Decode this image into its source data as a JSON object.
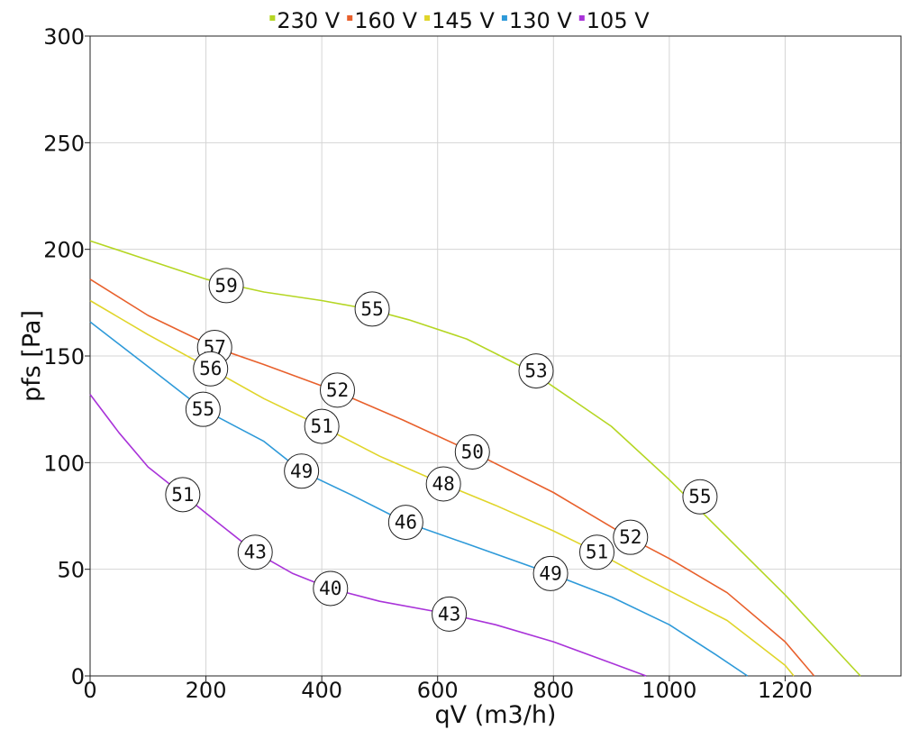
{
  "chart_data": {
    "type": "line",
    "xlabel": "qV (m3/h)",
    "ylabel": "pfs [Pa]",
    "xlim": [
      0,
      1400
    ],
    "ylim": [
      0,
      300
    ],
    "xticks": [
      0,
      200,
      400,
      600,
      800,
      1000,
      1200
    ],
    "yticks": [
      0,
      50,
      100,
      150,
      200,
      250,
      300
    ],
    "grid": true,
    "legend_position": "top-center",
    "series": [
      {
        "name": "230 V",
        "color": "#b5d623",
        "points": [
          [
            0,
            204
          ],
          [
            100,
            195
          ],
          [
            200,
            186
          ],
          [
            300,
            180
          ],
          [
            400,
            176
          ],
          [
            480,
            172
          ],
          [
            550,
            167
          ],
          [
            650,
            158
          ],
          [
            760,
            143
          ],
          [
            900,
            117
          ],
          [
            1000,
            92
          ],
          [
            1100,
            65
          ],
          [
            1200,
            38
          ],
          [
            1330,
            0
          ]
        ],
        "labels": [
          {
            "x": 235,
            "y": 183,
            "text": "59"
          },
          {
            "x": 487,
            "y": 172,
            "text": "55"
          },
          {
            "x": 770,
            "y": 143,
            "text": "53"
          },
          {
            "x": 1053,
            "y": 84,
            "text": "55"
          }
        ]
      },
      {
        "name": "160 V",
        "color": "#e8602c",
        "points": [
          [
            0,
            186
          ],
          [
            100,
            169
          ],
          [
            215,
            154
          ],
          [
            300,
            146
          ],
          [
            420,
            134
          ],
          [
            540,
            120
          ],
          [
            660,
            105
          ],
          [
            800,
            86
          ],
          [
            930,
            65
          ],
          [
            1000,
            55
          ],
          [
            1100,
            39
          ],
          [
            1200,
            16
          ],
          [
            1250,
            0
          ]
        ],
        "labels": [
          {
            "x": 215,
            "y": 154,
            "text": "57"
          },
          {
            "x": 427,
            "y": 134,
            "text": "52"
          },
          {
            "x": 660,
            "y": 105,
            "text": "50"
          },
          {
            "x": 933,
            "y": 65,
            "text": "52"
          }
        ]
      },
      {
        "name": "145 V",
        "color": "#e0d52a",
        "points": [
          [
            0,
            176
          ],
          [
            100,
            160
          ],
          [
            208,
            144
          ],
          [
            300,
            130
          ],
          [
            400,
            117
          ],
          [
            500,
            103
          ],
          [
            610,
            90
          ],
          [
            700,
            80
          ],
          [
            800,
            68
          ],
          [
            875,
            58
          ],
          [
            950,
            47
          ],
          [
            1100,
            26
          ],
          [
            1200,
            5
          ],
          [
            1215,
            0
          ]
        ],
        "labels": [
          {
            "x": 208,
            "y": 144,
            "text": "56"
          },
          {
            "x": 400,
            "y": 117,
            "text": "51"
          },
          {
            "x": 610,
            "y": 90,
            "text": "48"
          },
          {
            "x": 875,
            "y": 58,
            "text": "51"
          }
        ]
      },
      {
        "name": "130 V",
        "color": "#2e9ad9",
        "points": [
          [
            0,
            166
          ],
          [
            100,
            145
          ],
          [
            195,
            125
          ],
          [
            300,
            110
          ],
          [
            365,
            96
          ],
          [
            450,
            85
          ],
          [
            545,
            72
          ],
          [
            650,
            62
          ],
          [
            795,
            48
          ],
          [
            900,
            37
          ],
          [
            1000,
            24
          ],
          [
            1080,
            10
          ],
          [
            1135,
            0
          ]
        ],
        "labels": [
          {
            "x": 195,
            "y": 125,
            "text": "55"
          },
          {
            "x": 365,
            "y": 96,
            "text": "49"
          },
          {
            "x": 545,
            "y": 72,
            "text": "46"
          },
          {
            "x": 795,
            "y": 48,
            "text": "49"
          }
        ]
      },
      {
        "name": "105 V",
        "color": "#a933d9",
        "points": [
          [
            0,
            132
          ],
          [
            50,
            114
          ],
          [
            100,
            98
          ],
          [
            160,
            85
          ],
          [
            220,
            72
          ],
          [
            285,
            58
          ],
          [
            350,
            48
          ],
          [
            415,
            41
          ],
          [
            500,
            35
          ],
          [
            620,
            29
          ],
          [
            700,
            24
          ],
          [
            800,
            16
          ],
          [
            900,
            6
          ],
          [
            960,
            0
          ]
        ],
        "labels": [
          {
            "x": 160,
            "y": 85,
            "text": "51"
          },
          {
            "x": 285,
            "y": 58,
            "text": "43"
          },
          {
            "x": 415,
            "y": 41,
            "text": "40"
          },
          {
            "x": 620,
            "y": 29,
            "text": "43"
          }
        ]
      }
    ]
  }
}
